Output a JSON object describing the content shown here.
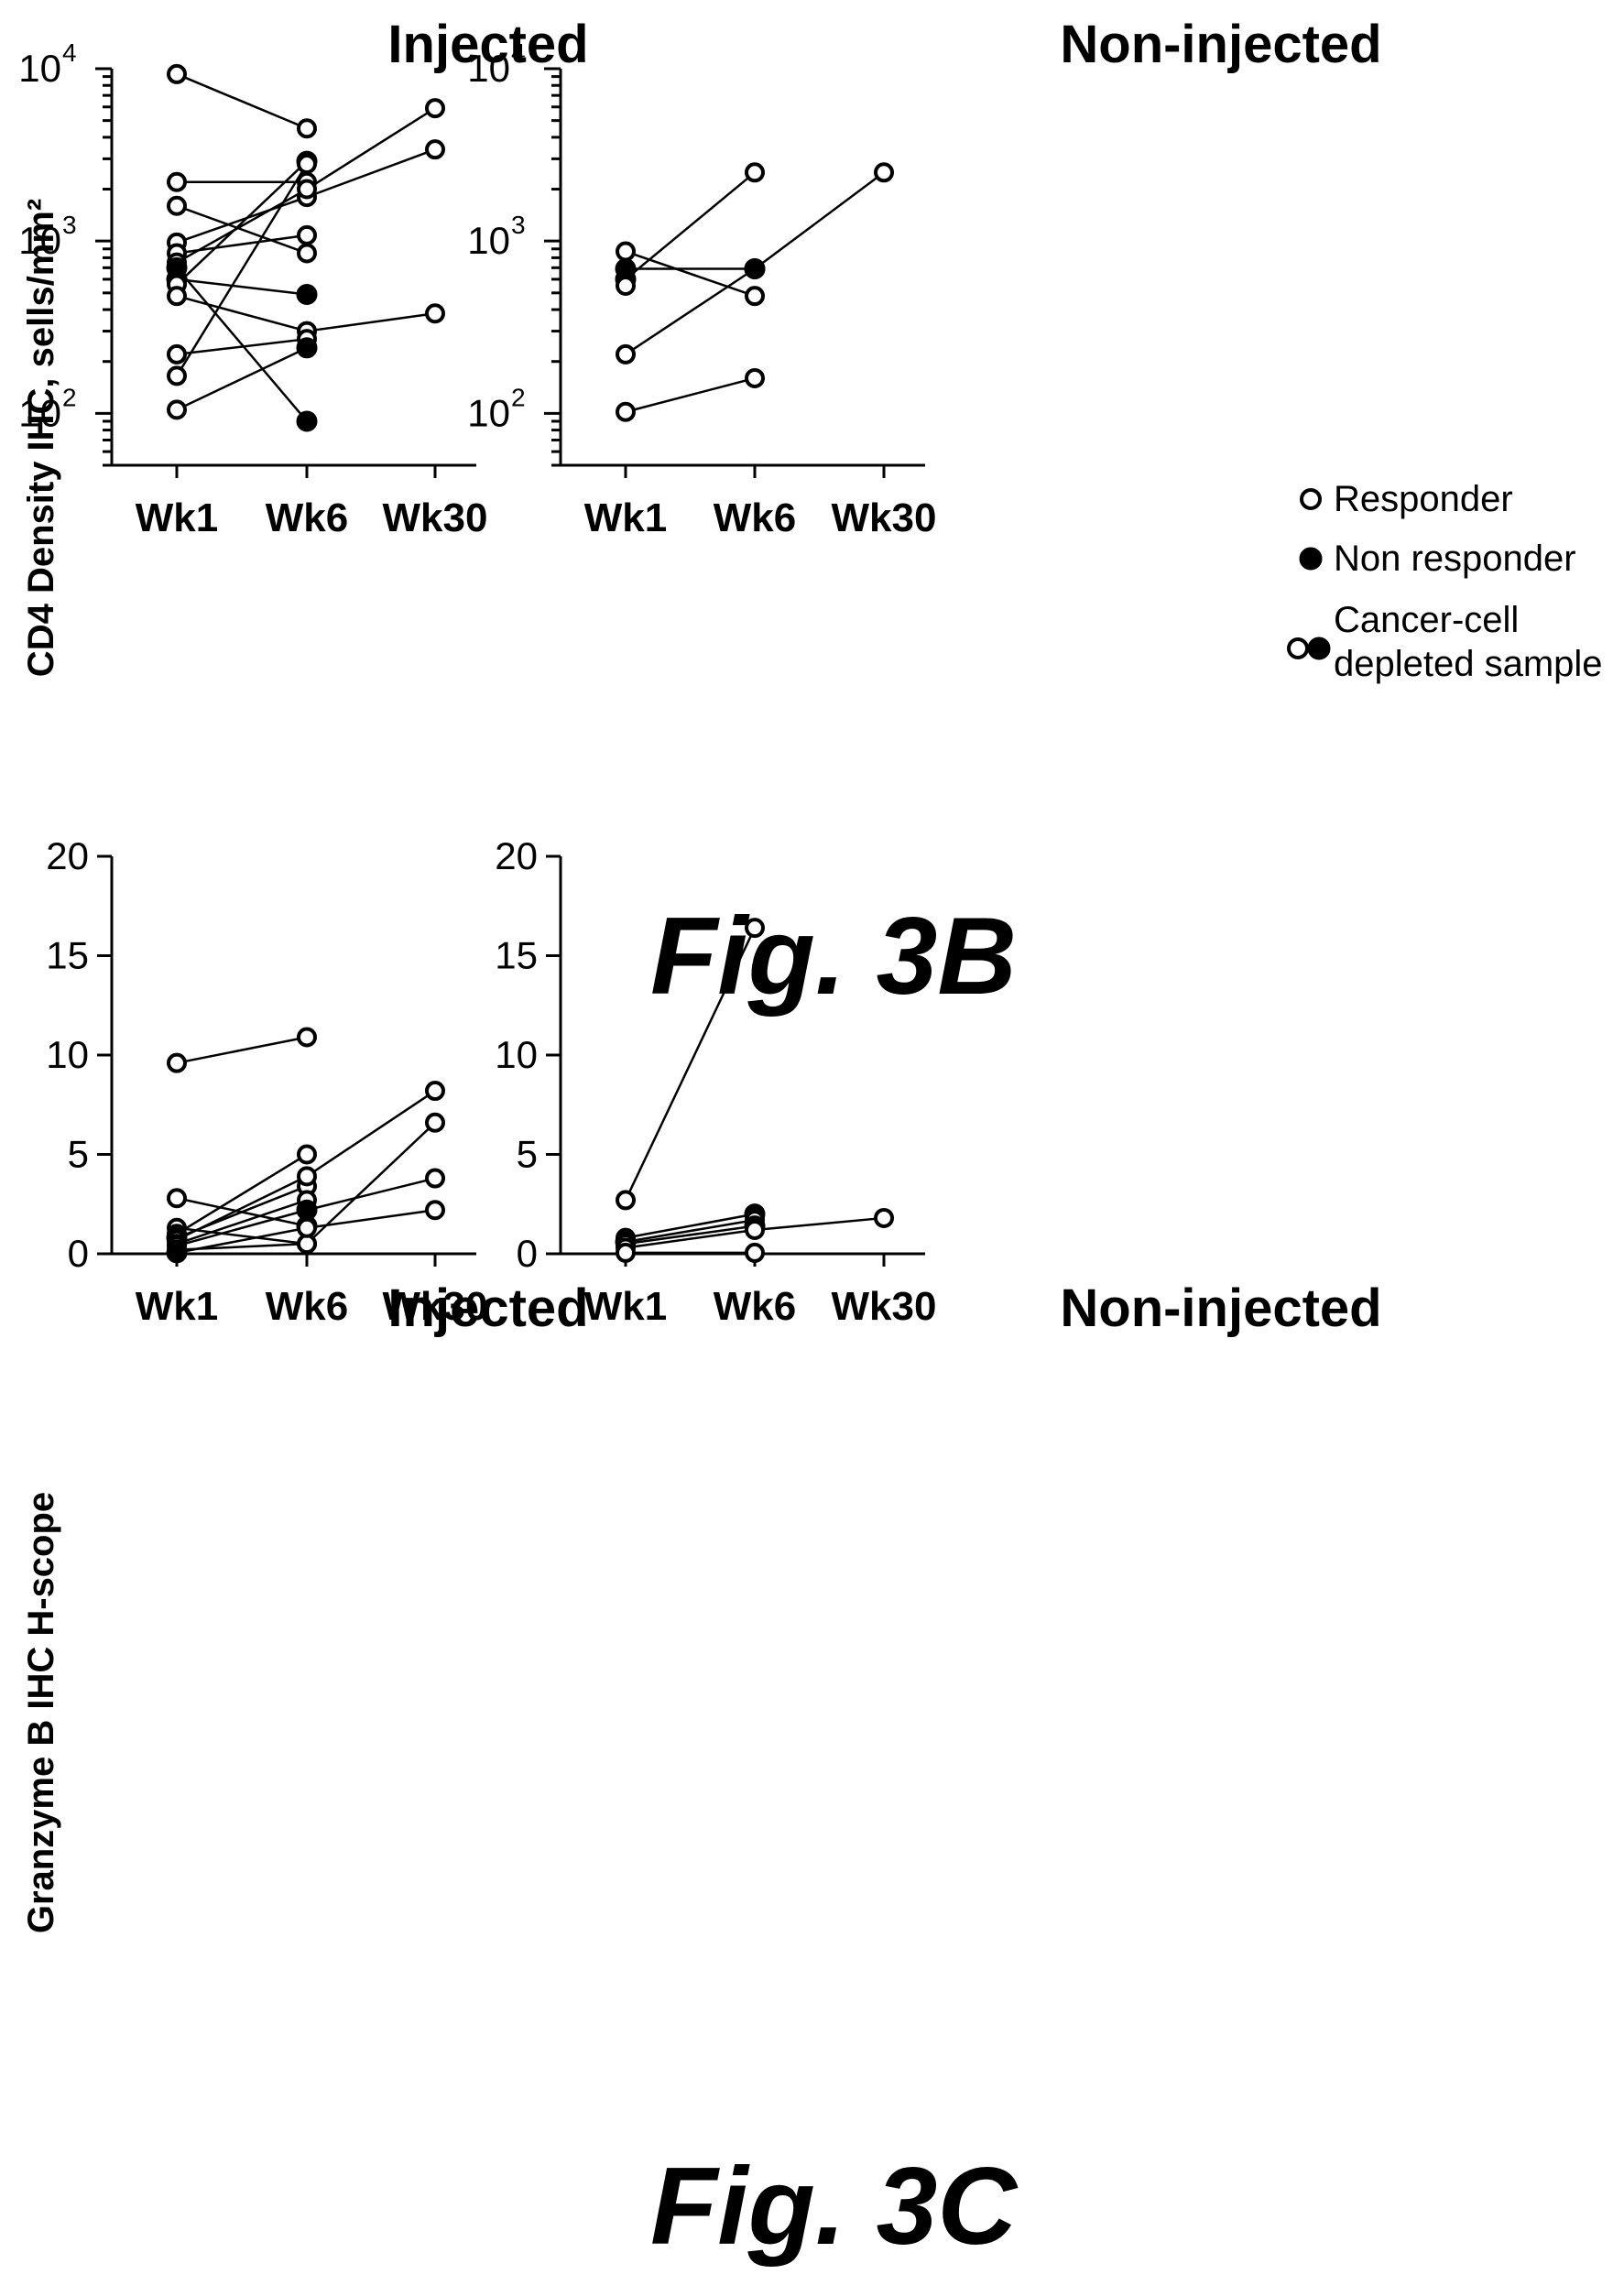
{
  "fig_3b": {
    "caption": "Fig. 3B",
    "ylabel": "CD4 Density IHC, sells/mm²",
    "legend": {
      "responder": "Responder",
      "non_responder": "Non responder",
      "depleted_line1": "Cancer-cell",
      "depleted_line2": "depleted sample"
    }
  },
  "fig_3c": {
    "caption": "Fig. 3C",
    "ylabel": "Granzyme B IHC H-scope"
  },
  "chart_data": [
    {
      "id": "3b-injected",
      "type": "line",
      "title": "Injected",
      "scale": "log",
      "ylim": [
        50,
        10000
      ],
      "y_tick_labels": [
        {
          "value": 100,
          "base": "10",
          "exp": "2"
        },
        {
          "value": 1000,
          "base": "10",
          "exp": "3"
        },
        {
          "value": 10000,
          "base": "10",
          "exp": "4"
        }
      ],
      "categories": [
        "Wk1",
        "Wk6",
        "Wk30"
      ],
      "series": [
        {
          "values": [
            9300,
            4500,
            null
          ],
          "filled": [
            false,
            false,
            false
          ]
        },
        {
          "values": [
            2200,
            2200,
            null
          ],
          "filled": [
            false,
            false,
            false
          ]
        },
        {
          "values": [
            1600,
            850,
            null
          ],
          "filled": [
            false,
            false,
            false
          ]
        },
        {
          "values": [
            980,
            1800,
            3400
          ],
          "filled": [
            false,
            false,
            false
          ]
        },
        {
          "values": [
            850,
            1080,
            null
          ],
          "filled": [
            false,
            false,
            false
          ]
        },
        {
          "values": [
            750,
            2000,
            5900
          ],
          "filled": [
            false,
            false,
            false
          ]
        },
        {
          "values": [
            700,
            90,
            null
          ],
          "filled": [
            true,
            true,
            false
          ]
        },
        {
          "values": [
            600,
            490,
            null
          ],
          "filled": [
            true,
            true,
            false
          ]
        },
        {
          "values": [
            560,
            2900,
            null
          ],
          "filled": [
            false,
            true,
            false
          ]
        },
        {
          "values": [
            480,
            300,
            380
          ],
          "filled": [
            false,
            false,
            false
          ]
        },
        {
          "values": [
            220,
            270,
            null
          ],
          "filled": [
            false,
            false,
            false
          ]
        },
        {
          "values": [
            165,
            2800,
            null
          ],
          "filled": [
            false,
            false,
            false
          ]
        },
        {
          "values": [
            105,
            240,
            null
          ],
          "filled": [
            false,
            true,
            false
          ]
        }
      ]
    },
    {
      "id": "3b-noninjected",
      "type": "line",
      "title": "Non-injected",
      "scale": "log",
      "ylim": [
        50,
        10000
      ],
      "y_tick_labels": [
        {
          "value": 100,
          "base": "10",
          "exp": "2"
        },
        {
          "value": 1000,
          "base": "10",
          "exp": "3"
        },
        {
          "value": 10000,
          "base": "10",
          "exp": "4"
        }
      ],
      "categories": [
        "Wk1",
        "Wk6",
        "Wk30"
      ],
      "series": [
        {
          "values": [
            870,
            480,
            null
          ],
          "filled": [
            false,
            false,
            false
          ]
        },
        {
          "values": [
            690,
            690,
            null
          ],
          "filled": [
            true,
            true,
            false
          ]
        },
        {
          "values": [
            600,
            2500,
            null
          ],
          "filled": [
            true,
            false,
            false
          ]
        },
        {
          "values": [
            550,
            null,
            null
          ],
          "filled": [
            false,
            false,
            false
          ]
        },
        {
          "values": [
            220,
            690,
            2500
          ],
          "filled": [
            false,
            true,
            false
          ]
        },
        {
          "values": [
            102,
            160,
            null
          ],
          "filled": [
            false,
            false,
            false
          ]
        }
      ]
    },
    {
      "id": "3c-injected",
      "type": "line",
      "title": "Injected",
      "scale": "linear",
      "ylim": [
        0,
        20
      ],
      "yticks": [
        0,
        5,
        10,
        15,
        20
      ],
      "categories": [
        "Wk1",
        "Wk6",
        "Wk30"
      ],
      "series": [
        {
          "values": [
            9.6,
            10.9,
            null
          ],
          "filled": [
            false,
            false,
            false
          ]
        },
        {
          "values": [
            2.8,
            1.4,
            null
          ],
          "filled": [
            false,
            true,
            false
          ]
        },
        {
          "values": [
            1.3,
            0.5,
            null
          ],
          "filled": [
            false,
            false,
            false
          ]
        },
        {
          "values": [
            1.0,
            5.0,
            null
          ],
          "filled": [
            false,
            false,
            false
          ]
        },
        {
          "values": [
            0.8,
            3.4,
            null
          ],
          "filled": [
            true,
            false,
            false
          ]
        },
        {
          "values": [
            0.7,
            3.9,
            8.2
          ],
          "filled": [
            false,
            false,
            false
          ]
        },
        {
          "values": [
            0.5,
            2.7,
            null
          ],
          "filled": [
            false,
            false,
            false
          ]
        },
        {
          "values": [
            0.4,
            2.2,
            3.8
          ],
          "filled": [
            false,
            true,
            false
          ]
        },
        {
          "values": [
            0.2,
            0.5,
            6.6
          ],
          "filled": [
            false,
            false,
            false
          ]
        },
        {
          "values": [
            0.05,
            1.3,
            2.2
          ],
          "filled": [
            true,
            false,
            false
          ]
        }
      ]
    },
    {
      "id": "3c-noninjected",
      "type": "line",
      "title": "Non-injected",
      "scale": "linear",
      "ylim": [
        0,
        20
      ],
      "yticks": [
        0,
        5,
        10,
        15,
        20
      ],
      "categories": [
        "Wk1",
        "Wk6",
        "Wk30"
      ],
      "series": [
        {
          "values": [
            2.7,
            16.4,
            null
          ],
          "filled": [
            false,
            false,
            false
          ]
        },
        {
          "values": [
            0.8,
            2.0,
            null
          ],
          "filled": [
            false,
            true,
            false
          ]
        },
        {
          "values": [
            0.6,
            1.7,
            null
          ],
          "filled": [
            true,
            false,
            false
          ]
        },
        {
          "values": [
            0.5,
            1.4,
            null
          ],
          "filled": [
            false,
            true,
            false
          ]
        },
        {
          "values": [
            0.3,
            1.2,
            1.8
          ],
          "filled": [
            false,
            false,
            false
          ]
        },
        {
          "values": [
            0.05,
            0.05,
            null
          ],
          "filled": [
            false,
            false,
            false
          ]
        }
      ]
    }
  ]
}
